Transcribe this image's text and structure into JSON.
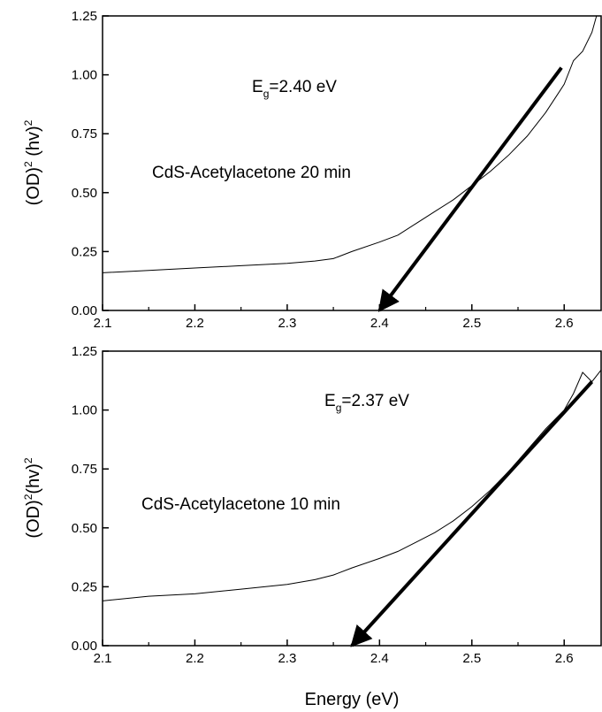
{
  "chart_data": [
    {
      "type": "line",
      "ylabel": {
        "base1": "(OD)",
        "sup1": "2",
        "base2": " (hv)",
        "sup2": "2"
      },
      "xlim": [
        2.1,
        2.64
      ],
      "ylim": [
        0,
        1.25
      ],
      "x_ticks": [
        "2.1",
        "2.2",
        "2.3",
        "2.4",
        "2.5",
        "2.6"
      ],
      "y_ticks": [
        "0.00",
        "0.25",
        "0.50",
        "0.75",
        "1.00",
        "1.25"
      ],
      "annotations": {
        "eg_base": "E",
        "eg_sub": "g",
        "eg_value": "=2.40 eV",
        "sample_label": "CdS-Acetylacetone 20 min"
      },
      "series": [
        {
          "x": [
            2.1,
            2.15,
            2.2,
            2.25,
            2.3,
            2.33,
            2.35,
            2.37,
            2.4,
            2.42,
            2.44,
            2.46,
            2.48,
            2.5,
            2.52,
            2.54,
            2.56,
            2.58,
            2.6,
            2.61,
            2.62,
            2.63,
            2.635
          ],
          "y": [
            0.16,
            0.17,
            0.18,
            0.19,
            0.2,
            0.21,
            0.22,
            0.25,
            0.29,
            0.32,
            0.37,
            0.42,
            0.47,
            0.53,
            0.59,
            0.66,
            0.74,
            0.84,
            0.96,
            1.06,
            1.1,
            1.18,
            1.25
          ]
        }
      ],
      "fit_arrow": {
        "x": [
          2.597,
          2.4
        ],
        "y": [
          1.03,
          0.0
        ]
      }
    },
    {
      "type": "line",
      "ylabel": {
        "base1": "(OD)",
        "sup1": "2",
        "base2": "(hv)",
        "sup2": "2"
      },
      "xlabel": "Energy  (eV)",
      "xlim": [
        2.1,
        2.64
      ],
      "ylim": [
        0,
        1.25
      ],
      "x_ticks": [
        "2.1",
        "2.2",
        "2.3",
        "2.4",
        "2.5",
        "2.6"
      ],
      "y_ticks": [
        "0.00",
        "0.25",
        "0.50",
        "0.75",
        "1.00",
        "1.25"
      ],
      "annotations": {
        "eg_base": "E",
        "eg_sub": "g",
        "eg_value": "=2.37 eV",
        "sample_label": "CdS-Acetylacetone 10 min"
      },
      "series": [
        {
          "x": [
            2.1,
            2.15,
            2.2,
            2.25,
            2.3,
            2.33,
            2.35,
            2.37,
            2.4,
            2.42,
            2.44,
            2.46,
            2.48,
            2.5,
            2.52,
            2.54,
            2.56,
            2.58,
            2.6,
            2.61,
            2.62,
            2.63,
            2.64
          ],
          "y": [
            0.19,
            0.21,
            0.22,
            0.24,
            0.26,
            0.28,
            0.3,
            0.33,
            0.37,
            0.4,
            0.44,
            0.48,
            0.53,
            0.59,
            0.66,
            0.74,
            0.83,
            0.92,
            1.0,
            1.07,
            1.16,
            1.12,
            1.17
          ]
        }
      ],
      "fit_arrow": {
        "x": [
          2.63,
          2.37
        ],
        "y": [
          1.12,
          0.0
        ]
      }
    }
  ]
}
